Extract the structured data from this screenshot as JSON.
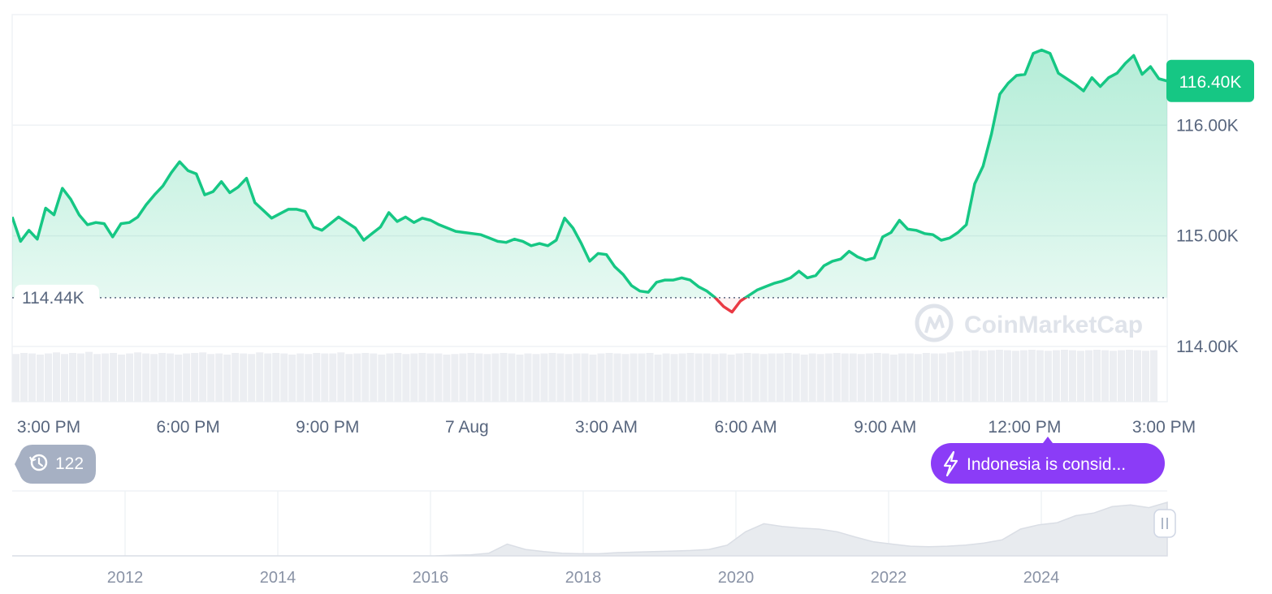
{
  "chart_data": {
    "type": "area",
    "x_ticks": [
      "3:00 PM",
      "6:00 PM",
      "9:00 PM",
      "7 Aug",
      "3:00 AM",
      "6:00 AM",
      "9:00 AM",
      "12:00 PM",
      "3:00 PM"
    ],
    "y_ticks": [
      "116.00K",
      "115.00K",
      "114.00K"
    ],
    "ylim": [
      113.5,
      117.0
    ],
    "reference_value": 114.44,
    "reference_label": "114.44K",
    "current_label": "116.40K",
    "grid": true,
    "up_color": "#16c784",
    "down_color": "#ea3943",
    "series": [
      {
        "y": [
          115.17,
          114.95,
          115.05,
          114.97,
          115.25,
          115.19,
          115.43,
          115.33,
          115.19,
          115.1,
          115.12,
          115.11,
          114.99,
          115.11,
          115.12,
          115.17,
          115.28,
          115.37,
          115.45,
          115.57,
          115.67,
          115.59,
          115.56,
          115.37,
          115.4,
          115.49,
          115.39,
          115.44,
          115.52,
          115.3,
          115.23,
          115.16,
          115.2,
          115.24,
          115.24,
          115.22,
          115.08,
          115.05,
          115.11,
          115.17,
          115.12,
          115.07,
          114.96,
          115.02,
          115.08,
          115.21,
          115.13,
          115.17,
          115.12,
          115.16,
          115.14,
          115.1,
          115.07,
          115.04,
          115.03,
          115.02,
          115.01,
          114.98,
          114.95,
          114.94,
          114.97,
          114.95,
          114.91,
          114.93,
          114.91,
          114.96,
          115.16,
          115.07,
          114.93,
          114.77,
          114.84,
          114.83,
          114.72,
          114.65,
          114.55,
          114.5,
          114.49,
          114.58,
          114.6,
          114.6,
          114.62,
          114.6,
          114.54,
          114.5,
          114.44,
          114.36,
          114.31,
          114.41,
          114.46,
          114.51,
          114.54,
          114.57,
          114.59,
          114.62,
          114.68,
          114.62,
          114.64,
          114.73,
          114.77,
          114.79,
          114.86,
          114.81,
          114.78,
          114.8,
          114.99,
          115.03,
          115.14,
          115.06,
          115.05,
          115.02,
          115.01,
          114.96,
          114.98,
          115.03,
          115.1,
          115.47,
          115.63,
          115.92,
          116.28,
          116.38,
          116.45,
          116.46,
          116.65,
          116.68,
          116.65,
          116.47,
          116.42,
          116.37,
          116.31,
          116.43,
          116.35,
          116.43,
          116.47,
          116.56,
          116.63,
          116.46,
          116.53,
          116.42,
          116.4
        ]
      }
    ],
    "volume": [
      0.89,
      0.91,
      0.9,
      0.88,
      0.9,
      0.92,
      0.89,
      0.91,
      0.9,
      0.93,
      0.89,
      0.9,
      0.91,
      0.88,
      0.9,
      0.92,
      0.9,
      0.89,
      0.91,
      0.9,
      0.88,
      0.9,
      0.91,
      0.92,
      0.89,
      0.9,
      0.88,
      0.91,
      0.9,
      0.89,
      0.92,
      0.9,
      0.91,
      0.9,
      0.88,
      0.9,
      0.89,
      0.91,
      0.9,
      0.9,
      0.92,
      0.89,
      0.9,
      0.91,
      0.9,
      0.88,
      0.9,
      0.91,
      0.89,
      0.9,
      0.91,
      0.9,
      0.9,
      0.88,
      0.89,
      0.9,
      0.91,
      0.9,
      0.89,
      0.9,
      0.91,
      0.9,
      0.88,
      0.9,
      0.89,
      0.9,
      0.91,
      0.9,
      0.89,
      0.9,
      0.9,
      0.88,
      0.9,
      0.91,
      0.9,
      0.89,
      0.9,
      0.9,
      0.91,
      0.88,
      0.9,
      0.89,
      0.9,
      0.91,
      0.9,
      0.9,
      0.89,
      0.9,
      0.88,
      0.9,
      0.91,
      0.9,
      0.89,
      0.9,
      0.9,
      0.91,
      0.9,
      0.88,
      0.9,
      0.89,
      0.9,
      0.91,
      0.9,
      0.9,
      0.89,
      0.9,
      0.91,
      0.9,
      0.88,
      0.9,
      0.9,
      0.89,
      0.91,
      0.9,
      0.9,
      0.92,
      0.94,
      0.95,
      0.96,
      0.95,
      0.96,
      0.97,
      0.96,
      0.95,
      0.96,
      0.97,
      0.96,
      0.95,
      0.96,
      0.97,
      0.96,
      0.95,
      0.96,
      0.97,
      0.96,
      0.95,
      0.96,
      0.97,
      0.96,
      0.95,
      0.96
    ]
  },
  "event_badge": {
    "count": "122",
    "history_icon": "history-icon"
  },
  "news_pill": {
    "text": "Indonesia is consid...",
    "icon": "lightning-icon",
    "color": "#8b3cf7"
  },
  "watermark": {
    "brand": "CoinMarketCap",
    "icon": "coinmarketcap-logo-icon"
  },
  "navigator": {
    "year_ticks": [
      "2012",
      "2014",
      "2016",
      "2018",
      "2020",
      "2022",
      "2024"
    ],
    "history": [
      0.0,
      0.0,
      0.0,
      0.0,
      0.0,
      0.0,
      0.0,
      0.0,
      0.0,
      0.0,
      0.0,
      0.0,
      0.0,
      0.0,
      0.0,
      0.0,
      0.0,
      0.0,
      0.0,
      0.0,
      0.0,
      0.0,
      0.0,
      0.0,
      0.01,
      0.02,
      0.05,
      0.22,
      0.12,
      0.08,
      0.05,
      0.04,
      0.04,
      0.06,
      0.07,
      0.08,
      0.09,
      0.1,
      0.12,
      0.2,
      0.45,
      0.6,
      0.55,
      0.52,
      0.5,
      0.45,
      0.35,
      0.26,
      0.22,
      0.18,
      0.17,
      0.18,
      0.2,
      0.24,
      0.3,
      0.5,
      0.58,
      0.62,
      0.75,
      0.8,
      0.92,
      0.95,
      0.9,
      1.0
    ]
  }
}
